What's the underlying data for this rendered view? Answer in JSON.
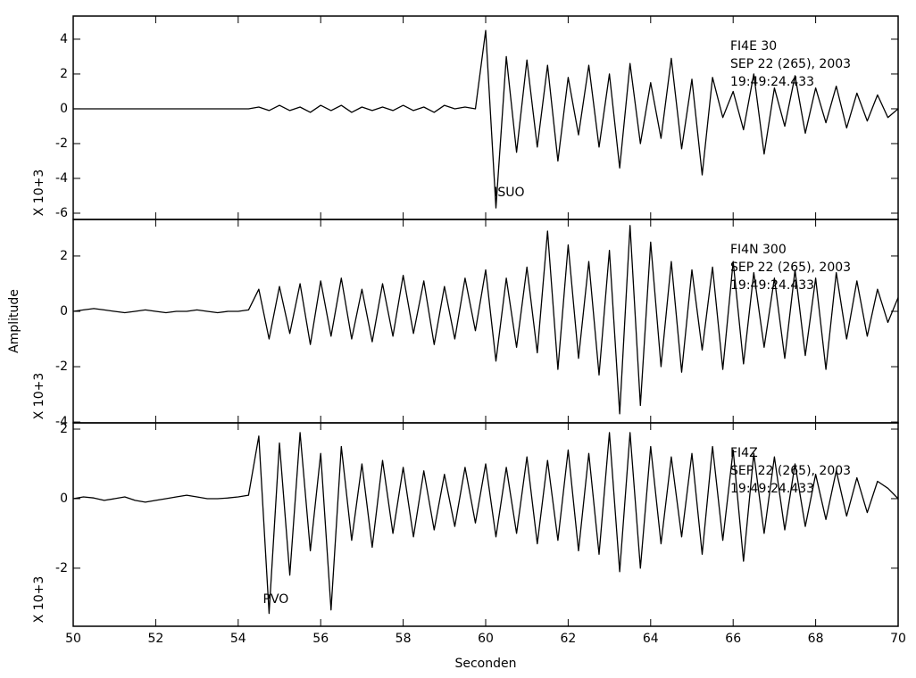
{
  "chart_data": [
    {
      "type": "line",
      "color": "#000000",
      "annotations": [
        "FI4E  30",
        "SEP 22 (265), 2003",
        "19:49:24.433"
      ],
      "phase": "ISUO",
      "phase_x": 60.2,
      "y_multiplier": "X 10+3",
      "xlim": [
        50,
        70
      ],
      "xticks": [
        50,
        52,
        54,
        56,
        58,
        60,
        62,
        64,
        66,
        68,
        70
      ],
      "ylim": [
        -6.36,
        5.33
      ],
      "yticks": [
        -6,
        -4,
        -2,
        0,
        2,
        4
      ],
      "x": [
        50,
        50.25,
        50.5,
        50.75,
        51,
        51.25,
        51.5,
        51.75,
        52,
        52.25,
        52.5,
        52.75,
        53,
        53.25,
        53.5,
        53.75,
        54,
        54.25,
        54.5,
        54.75,
        55,
        55.25,
        55.5,
        55.75,
        56,
        56.25,
        56.5,
        56.75,
        57,
        57.25,
        57.5,
        57.75,
        58,
        58.25,
        58.5,
        58.75,
        59,
        59.25,
        59.5,
        59.75,
        60,
        60.25,
        60.5,
        60.75,
        61,
        61.25,
        61.5,
        61.75,
        62,
        62.25,
        62.5,
        62.75,
        63,
        63.25,
        63.5,
        63.75,
        64,
        64.25,
        64.5,
        64.75,
        65,
        65.25,
        65.5,
        65.75,
        66,
        66.25,
        66.5,
        66.75,
        67,
        67.25,
        67.5,
        67.75,
        68,
        68.25,
        68.5,
        68.75,
        69,
        69.25,
        69.5,
        69.75,
        70
      ],
      "values": [
        0,
        0,
        0,
        0,
        0,
        0,
        0,
        0,
        0,
        0,
        0,
        0,
        0,
        0,
        0,
        0,
        0,
        0,
        0.1,
        -0.1,
        0.2,
        -0.1,
        0.1,
        -0.2,
        0.2,
        -0.1,
        0.2,
        -0.2,
        0.1,
        -0.1,
        0.1,
        -0.1,
        0.2,
        -0.1,
        0.1,
        -0.2,
        0.2,
        0,
        0.1,
        0,
        4.5,
        -5.7,
        3,
        -2.5,
        2.8,
        -2.2,
        2.5,
        -3,
        1.8,
        -1.5,
        2.5,
        -2.2,
        2,
        -3.4,
        2.6,
        -2,
        1.5,
        -1.7,
        2.9,
        -2.3,
        1.7,
        -3.8,
        1.8,
        -0.5,
        1,
        -1.2,
        2,
        -2.6,
        1.2,
        -1,
        1.9,
        -1.4,
        1.2,
        -0.8,
        1.3,
        -1.1,
        0.9,
        -0.7,
        0.8,
        -0.5,
        0
      ]
    },
    {
      "type": "line",
      "color": "#000000",
      "ylabel": "Amplitude",
      "annotations": [
        "FI4N  300",
        "SEP 22 (265), 2003",
        "19:49:24.433"
      ],
      "y_multiplier": "X 10+3",
      "xlim": [
        50,
        70
      ],
      "xticks": [
        50,
        52,
        54,
        56,
        58,
        60,
        62,
        64,
        66,
        68,
        70
      ],
      "ylim": [
        -4.03,
        3.32
      ],
      "yticks": [
        -4,
        -2,
        0,
        2
      ],
      "x": [
        50,
        50.25,
        50.5,
        50.75,
        51,
        51.25,
        51.5,
        51.75,
        52,
        52.25,
        52.5,
        52.75,
        53,
        53.25,
        53.5,
        53.75,
        54,
        54.25,
        54.5,
        54.75,
        55,
        55.25,
        55.5,
        55.75,
        56,
        56.25,
        56.5,
        56.75,
        57,
        57.25,
        57.5,
        57.75,
        58,
        58.25,
        58.5,
        58.75,
        59,
        59.25,
        59.5,
        59.75,
        60,
        60.25,
        60.5,
        60.75,
        61,
        61.25,
        61.5,
        61.75,
        62,
        62.25,
        62.5,
        62.75,
        63,
        63.25,
        63.5,
        63.75,
        64,
        64.25,
        64.5,
        64.75,
        65,
        65.25,
        65.5,
        65.75,
        66,
        66.25,
        66.5,
        66.75,
        67,
        67.25,
        67.5,
        67.75,
        68,
        68.25,
        68.5,
        68.75,
        69,
        69.25,
        69.5,
        69.75,
        70
      ],
      "values": [
        0,
        0.05,
        0.1,
        0.05,
        0,
        -0.05,
        0,
        0.05,
        0,
        -0.05,
        0,
        0,
        0.05,
        0,
        -0.05,
        0,
        0,
        0.05,
        0.8,
        -1,
        0.9,
        -0.8,
        1,
        -1.2,
        1.1,
        -0.9,
        1.2,
        -1,
        0.8,
        -1.1,
        1,
        -0.9,
        1.3,
        -0.8,
        1.1,
        -1.2,
        0.9,
        -1,
        1.2,
        -0.7,
        1.5,
        -1.8,
        1.2,
        -1.3,
        1.6,
        -1.5,
        2.9,
        -2.1,
        2.4,
        -1.7,
        1.8,
        -2.3,
        2.2,
        -3.7,
        3.1,
        -3.4,
        2.5,
        -2,
        1.8,
        -2.2,
        1.5,
        -1.4,
        1.6,
        -2.1,
        1.8,
        -1.9,
        1.4,
        -1.3,
        1.2,
        -1.7,
        1.5,
        -1.6,
        1.2,
        -2.1,
        1.4,
        -1,
        1.1,
        -0.9,
        0.8,
        -0.4,
        0.5
      ]
    },
    {
      "type": "line",
      "color": "#000000",
      "xlabel": "Seconden",
      "annotations": [
        "FI4Z",
        "SEP 22 (265), 2003",
        "19:49:24.433"
      ],
      "phase": "PVO",
      "phase_x": 54.6,
      "y_multiplier": "X 10+3",
      "xlim": [
        50,
        70
      ],
      "xticks": [
        50,
        52,
        54,
        56,
        58,
        60,
        62,
        64,
        66,
        68,
        70
      ],
      "ylim": [
        -3.67,
        2.18
      ],
      "yticks": [
        -2,
        0,
        2
      ],
      "x": [
        50,
        50.25,
        50.5,
        50.75,
        51,
        51.25,
        51.5,
        51.75,
        52,
        52.25,
        52.5,
        52.75,
        53,
        53.25,
        53.5,
        53.75,
        54,
        54.25,
        54.5,
        54.75,
        55,
        55.25,
        55.5,
        55.75,
        56,
        56.25,
        56.5,
        56.75,
        57,
        57.25,
        57.5,
        57.75,
        58,
        58.25,
        58.5,
        58.75,
        59,
        59.25,
        59.5,
        59.75,
        60,
        60.25,
        60.5,
        60.75,
        61,
        61.25,
        61.5,
        61.75,
        62,
        62.25,
        62.5,
        62.75,
        63,
        63.25,
        63.5,
        63.75,
        64,
        64.25,
        64.5,
        64.75,
        65,
        65.25,
        65.5,
        65.75,
        66,
        66.25,
        66.5,
        66.75,
        67,
        67.25,
        67.5,
        67.75,
        68,
        68.25,
        68.5,
        68.75,
        69,
        69.25,
        69.5,
        69.75,
        70
      ],
      "values": [
        0,
        0.05,
        0.02,
        -0.05,
        0,
        0.05,
        -0.05,
        -0.1,
        -0.05,
        0,
        0.05,
        0.1,
        0.05,
        0,
        0,
        0.02,
        0.05,
        0.1,
        1.8,
        -3.3,
        1.6,
        -2.2,
        1.9,
        -1.5,
        1.3,
        -3.2,
        1.5,
        -1.2,
        1,
        -1.4,
        1.1,
        -1,
        0.9,
        -1.1,
        0.8,
        -0.9,
        0.7,
        -0.8,
        0.9,
        -0.7,
        1,
        -1.1,
        0.9,
        -1,
        1.2,
        -1.3,
        1.1,
        -1.2,
        1.4,
        -1.5,
        1.3,
        -1.6,
        1.9,
        -2.1,
        1.9,
        -2,
        1.5,
        -1.3,
        1.2,
        -1.1,
        1.3,
        -1.6,
        1.5,
        -1.2,
        1.4,
        -1.8,
        1.3,
        -1,
        1.2,
        -0.9,
        1,
        -0.8,
        0.7,
        -0.6,
        0.8,
        -0.5,
        0.6,
        -0.4,
        0.5,
        0.3,
        0
      ]
    }
  ]
}
